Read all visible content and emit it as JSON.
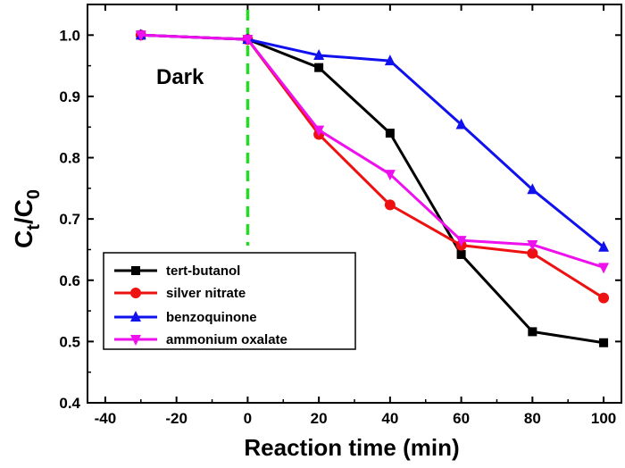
{
  "chart_data": {
    "type": "line",
    "xlabel": "Reaction time (min)",
    "ylabel_main": "C",
    "ylabel_sub1": "t",
    "ylabel_mid": "/C",
    "ylabel_sub2": "0",
    "xlim": [
      -45,
      105
    ],
    "ylim": [
      0.4,
      1.05
    ],
    "xticks": [
      -40,
      -20,
      0,
      20,
      40,
      60,
      80,
      100
    ],
    "yticks": [
      0.4,
      0.5,
      0.6,
      0.7,
      0.8,
      0.9,
      1.0
    ],
    "xtick_labels": [
      "-40",
      "-20",
      "0",
      "20",
      "40",
      "60",
      "80",
      "100"
    ],
    "ytick_labels": [
      "0.4",
      "0.5",
      "0.6",
      "0.7",
      "0.8",
      "0.9",
      "1.0"
    ],
    "annotation": "Dark",
    "vline": {
      "x": 0,
      "color": "#22dd22",
      "style": "dashed"
    },
    "x": [
      -30,
      0,
      20,
      40,
      60,
      80,
      100
    ],
    "series": [
      {
        "name": "tert-butanol",
        "color": "#000000",
        "marker": "square",
        "values": [
          1.0,
          0.993,
          0.947,
          0.84,
          0.642,
          0.516,
          0.498
        ]
      },
      {
        "name": "silver nitrate",
        "color": "#ee1111",
        "marker": "circle",
        "values": [
          1.0,
          0.993,
          0.838,
          0.723,
          0.657,
          0.644,
          0.571
        ]
      },
      {
        "name": "benzoquinone",
        "color": "#1111ee",
        "marker": "triangle-up",
        "values": [
          1.0,
          0.993,
          0.967,
          0.958,
          0.854,
          0.748,
          0.654
        ]
      },
      {
        "name": "ammonium oxalate",
        "color": "#ee11ee",
        "marker": "triangle-down",
        "values": [
          1.0,
          0.993,
          0.845,
          0.773,
          0.665,
          0.658,
          0.621
        ]
      }
    ],
    "legend_position": "bottom-left"
  }
}
